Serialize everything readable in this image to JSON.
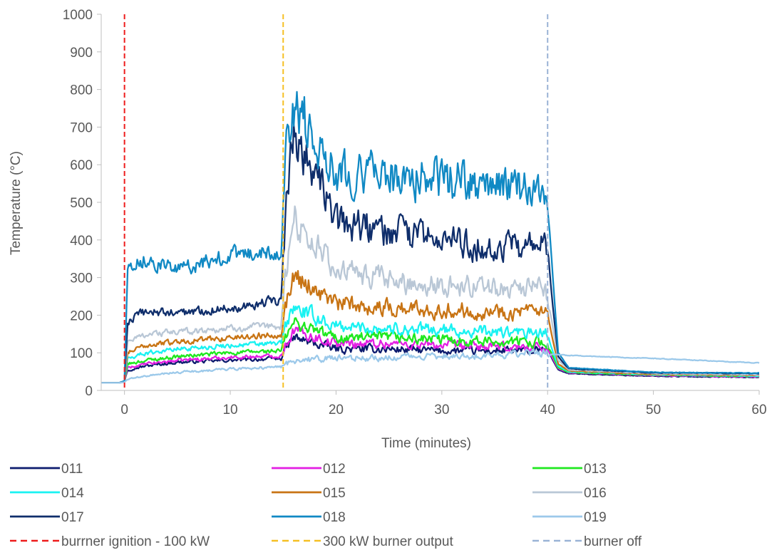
{
  "chart_data": {
    "type": "line",
    "title": "",
    "xlabel": "Time (minutes)",
    "ylabel": "Temperature (°C)",
    "xlim": [
      -2.2,
      60
    ],
    "ylim": [
      0,
      1000
    ],
    "xticks": [
      0,
      10,
      20,
      30,
      40,
      50,
      60
    ],
    "yticks": [
      0,
      100,
      200,
      300,
      400,
      500,
      600,
      700,
      800,
      900,
      1000
    ],
    "grid": false,
    "legend_position": "bottom",
    "series": [
      {
        "name": "011",
        "color": "#0d1b6e",
        "base": 20,
        "pre": [
          55,
          85
        ],
        "mid": [
          115,
          105
        ],
        "end": 35,
        "points": [
          [
            -2.2,
            20
          ],
          [
            -0.5,
            20
          ],
          [
            0,
            25
          ],
          [
            0.3,
            55
          ],
          [
            2,
            65
          ],
          [
            5,
            75
          ],
          [
            10,
            80
          ],
          [
            14.8,
            85
          ],
          [
            15.2,
            110
          ],
          [
            16,
            140
          ],
          [
            20,
            110
          ],
          [
            25,
            110
          ],
          [
            30,
            105
          ],
          [
            35,
            105
          ],
          [
            39.8,
            105
          ],
          [
            40.2,
            95
          ],
          [
            41,
            55
          ],
          [
            42,
            45
          ],
          [
            50,
            38
          ],
          [
            60,
            35
          ]
        ]
      },
      {
        "name": "012",
        "color": "#e31ee3",
        "base": 20,
        "pre": [
          60,
          92
        ],
        "mid": [
          130,
          115
        ],
        "end": 36,
        "points": [
          [
            -2.2,
            20
          ],
          [
            -0.5,
            20
          ],
          [
            0,
            25
          ],
          [
            0.3,
            60
          ],
          [
            2,
            70
          ],
          [
            5,
            80
          ],
          [
            10,
            88
          ],
          [
            14.8,
            92
          ],
          [
            15.2,
            120
          ],
          [
            16,
            160
          ],
          [
            20,
            125
          ],
          [
            25,
            125
          ],
          [
            30,
            120
          ],
          [
            35,
            115
          ],
          [
            39.8,
            115
          ],
          [
            40.2,
            100
          ],
          [
            41,
            58
          ],
          [
            42,
            47
          ],
          [
            50,
            40
          ],
          [
            60,
            36
          ]
        ]
      },
      {
        "name": "013",
        "color": "#1fe81f",
        "base": 20,
        "pre": [
          70,
          105
        ],
        "mid": [
          145,
          130
        ],
        "end": 37,
        "points": [
          [
            -2.2,
            20
          ],
          [
            -0.5,
            20
          ],
          [
            0,
            25
          ],
          [
            0.3,
            70
          ],
          [
            2,
            80
          ],
          [
            5,
            90
          ],
          [
            10,
            100
          ],
          [
            14.8,
            105
          ],
          [
            15.2,
            140
          ],
          [
            16,
            180
          ],
          [
            20,
            140
          ],
          [
            25,
            140
          ],
          [
            30,
            135
          ],
          [
            35,
            130
          ],
          [
            39.8,
            130
          ],
          [
            40.2,
            110
          ],
          [
            41,
            60
          ],
          [
            42,
            48
          ],
          [
            50,
            41
          ],
          [
            60,
            37
          ]
        ]
      },
      {
        "name": "014",
        "color": "#19f2f2",
        "base": 20,
        "pre": [
          85,
          125
        ],
        "mid": [
          180,
          150
        ],
        "end": 38,
        "points": [
          [
            -2.2,
            20
          ],
          [
            -0.5,
            20
          ],
          [
            0,
            25
          ],
          [
            0.3,
            85
          ],
          [
            2,
            100
          ],
          [
            5,
            110
          ],
          [
            10,
            120
          ],
          [
            14.8,
            125
          ],
          [
            15.2,
            170
          ],
          [
            16,
            220
          ],
          [
            20,
            170
          ],
          [
            25,
            165
          ],
          [
            30,
            160
          ],
          [
            35,
            155
          ],
          [
            39.8,
            150
          ],
          [
            40.2,
            125
          ],
          [
            41,
            65
          ],
          [
            42,
            50
          ],
          [
            50,
            42
          ],
          [
            60,
            38
          ]
        ]
      },
      {
        "name": "015",
        "color": "#c87414",
        "base": 20,
        "pre": [
          100,
          150
        ],
        "mid": [
          260,
          205
        ],
        "end": 40,
        "points": [
          [
            -2.2,
            20
          ],
          [
            -0.5,
            20
          ],
          [
            0,
            25
          ],
          [
            0.3,
            100
          ],
          [
            2,
            120
          ],
          [
            5,
            130
          ],
          [
            10,
            140
          ],
          [
            14.8,
            150
          ],
          [
            15.2,
            220
          ],
          [
            16,
            310
          ],
          [
            20,
            230
          ],
          [
            25,
            220
          ],
          [
            30,
            215
          ],
          [
            35,
            210
          ],
          [
            39.8,
            205
          ],
          [
            40.2,
            170
          ],
          [
            41,
            70
          ],
          [
            42,
            52
          ],
          [
            50,
            43
          ],
          [
            60,
            40
          ]
        ]
      },
      {
        "name": "016",
        "color": "#b9c7d6",
        "base": 20,
        "pre": [
          130,
          170
        ],
        "mid": [
          400,
          270
        ],
        "end": 42,
        "points": [
          [
            -2.2,
            20
          ],
          [
            -0.5,
            20
          ],
          [
            0,
            25
          ],
          [
            0.3,
            130
          ],
          [
            2,
            150
          ],
          [
            5,
            155
          ],
          [
            10,
            165
          ],
          [
            14.8,
            170
          ],
          [
            15.2,
            300
          ],
          [
            16,
            460
          ],
          [
            20,
            320
          ],
          [
            25,
            290
          ],
          [
            30,
            280
          ],
          [
            35,
            275
          ],
          [
            39.8,
            270
          ],
          [
            40.2,
            220
          ],
          [
            41,
            80
          ],
          [
            42,
            55
          ],
          [
            50,
            45
          ],
          [
            60,
            42
          ]
        ]
      },
      {
        "name": "017",
        "color": "#0f2e6b",
        "base": 20,
        "pre": [
          180,
          240
        ],
        "mid": [
          620,
          380
        ],
        "end": 45,
        "points": [
          [
            -2.2,
            20
          ],
          [
            -0.5,
            20
          ],
          [
            0,
            25
          ],
          [
            0.3,
            180
          ],
          [
            2,
            210
          ],
          [
            5,
            205
          ],
          [
            10,
            220
          ],
          [
            14.8,
            240
          ],
          [
            15.2,
            450
          ],
          [
            16,
            700
          ],
          [
            20,
            450
          ],
          [
            25,
            420
          ],
          [
            30,
            400
          ],
          [
            35,
            380
          ],
          [
            39.8,
            380
          ],
          [
            40.2,
            300
          ],
          [
            41,
            90
          ],
          [
            42,
            58
          ],
          [
            50,
            47
          ],
          [
            60,
            45
          ]
        ]
      },
      {
        "name": "018",
        "color": "#1089c4",
        "base": 20,
        "pre": [
          330,
          370
        ],
        "mid": [
          740,
          540
        ],
        "end": 46,
        "points": [
          [
            -2.2,
            20
          ],
          [
            -0.5,
            20
          ],
          [
            0,
            25
          ],
          [
            0.3,
            330
          ],
          [
            2,
            350
          ],
          [
            5,
            320
          ],
          [
            10,
            360
          ],
          [
            14.8,
            370
          ],
          [
            15.2,
            620
          ],
          [
            16,
            760
          ],
          [
            20,
            590
          ],
          [
            25,
            570
          ],
          [
            30,
            560
          ],
          [
            35,
            540
          ],
          [
            39.8,
            540
          ],
          [
            40.2,
            420
          ],
          [
            41,
            100
          ],
          [
            42,
            60
          ],
          [
            50,
            48
          ],
          [
            60,
            46
          ]
        ]
      },
      {
        "name": "019",
        "color": "#9cc9ea",
        "base": 20,
        "pre": [
          30,
          62
        ],
        "mid": [
          80,
          100
        ],
        "end": 73,
        "points": [
          [
            -2.2,
            20
          ],
          [
            -0.5,
            20
          ],
          [
            0,
            22
          ],
          [
            0.3,
            30
          ],
          [
            2,
            38
          ],
          [
            5,
            48
          ],
          [
            10,
            57
          ],
          [
            14.8,
            62
          ],
          [
            15.2,
            70
          ],
          [
            16,
            80
          ],
          [
            20,
            85
          ],
          [
            25,
            88
          ],
          [
            30,
            92
          ],
          [
            35,
            95
          ],
          [
            39.8,
            100
          ],
          [
            40.2,
            97
          ],
          [
            42,
            93
          ],
          [
            50,
            85
          ],
          [
            60,
            73
          ]
        ]
      }
    ],
    "events": [
      {
        "name": "burrner ignition - 100 kW",
        "x": 0,
        "color": "#ee1c1c"
      },
      {
        "name": "300 kW burner output",
        "x": 15,
        "color": "#f5c024"
      },
      {
        "name": "burner off",
        "x": 40,
        "color": "#9ab3d6"
      }
    ]
  }
}
